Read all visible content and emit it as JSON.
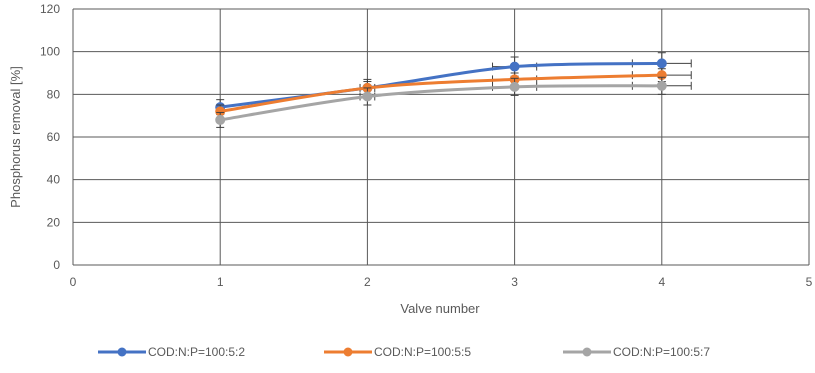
{
  "chart_data": {
    "type": "line",
    "title": "",
    "xlabel": "Valve number",
    "ylabel": "Phosphorus removal [%]",
    "xlim": [
      0,
      5
    ],
    "ylim": [
      0,
      120
    ],
    "x_ticks": [
      "0",
      "1",
      "2",
      "3",
      "4",
      "5"
    ],
    "y_ticks": [
      "0",
      "20",
      "40",
      "60",
      "80",
      "100",
      "120"
    ],
    "grid": true,
    "legend_position": "bottom",
    "smooth": true,
    "series": [
      {
        "name": "COD:N:P=100:5:2",
        "color": "#4472C4",
        "x": [
          1,
          2,
          3,
          4
        ],
        "values": [
          74,
          83,
          93,
          94.5
        ],
        "y_error": [
          3.5,
          4,
          4.5,
          5
        ],
        "x_error": [
          0,
          0,
          0.15,
          0.2
        ]
      },
      {
        "name": "COD:N:P=100:5:5",
        "color": "#ED7D31",
        "x": [
          1,
          2,
          3,
          4
        ],
        "values": [
          72,
          83,
          87,
          89
        ],
        "y_error": [
          3,
          3,
          3,
          3
        ],
        "x_error": [
          0,
          0.05,
          0.15,
          0.2
        ]
      },
      {
        "name": "COD:N:P=100:5:7",
        "color": "#A5A5A5",
        "x": [
          1,
          2,
          3,
          4
        ],
        "values": [
          68,
          79,
          83.5,
          84
        ],
        "y_error": [
          3.5,
          4,
          4,
          4
        ],
        "x_error": [
          0,
          0.05,
          0.15,
          0.2
        ]
      }
    ]
  }
}
